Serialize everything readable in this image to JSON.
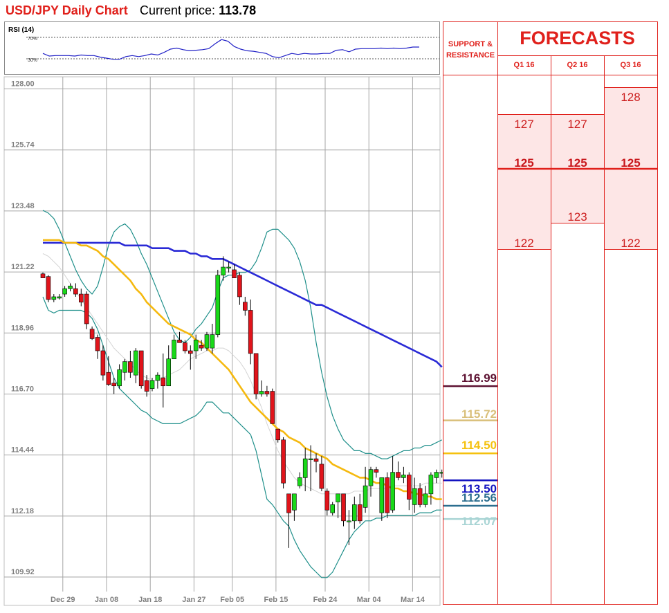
{
  "header": {
    "title": "USD/JPY Daily Chart",
    "price_label": "Current price:",
    "price_value": "113.78"
  },
  "rsi": {
    "label": "RSI (14)",
    "levels": [
      "70%",
      "30%"
    ],
    "values": [
      40,
      35,
      36,
      36,
      36,
      35,
      37,
      36,
      36,
      33,
      31,
      29,
      29,
      34,
      36,
      34,
      36,
      39,
      37,
      42,
      48,
      50,
      47,
      45,
      46,
      47,
      49,
      58,
      66,
      63,
      53,
      48,
      45,
      44,
      42,
      40,
      34,
      32,
      36,
      40,
      38,
      40,
      39,
      39,
      40,
      40,
      46,
      47,
      43,
      48,
      49,
      49,
      49,
      50,
      49,
      50,
      49,
      50,
      52,
      52
    ],
    "ylim": [
      0,
      100
    ],
    "color": "#1f1fc6"
  },
  "chart_data": {
    "type": "candlestick",
    "title": "USD/JPY Daily Chart",
    "ylim": [
      109.92,
      128.0
    ],
    "yticks": [
      "128.00",
      "125.74",
      "123.48",
      "121.22",
      "118.96",
      "116.70",
      "114.44",
      "112.18",
      "109.92"
    ],
    "xticks": [
      {
        "label": "Dec 29",
        "index": 2
      },
      {
        "label": "Jan 08",
        "index": 10
      },
      {
        "label": "Jan 18",
        "index": 18
      },
      {
        "label": "Jan 27",
        "index": 26
      },
      {
        "label": "Feb 05",
        "index": 33
      },
      {
        "label": "Feb 15",
        "index": 41
      },
      {
        "label": "Feb 24",
        "index": 50
      },
      {
        "label": "Mar 04",
        "index": 58
      },
      {
        "label": "Mar 14",
        "index": 66
      }
    ],
    "candles": [
      [
        121.15,
        121.2,
        121.1,
        121.0
      ],
      [
        121.05,
        121.1,
        120.1,
        120.2
      ],
      [
        120.2,
        120.4,
        120.1,
        120.3
      ],
      [
        120.25,
        120.4,
        120.2,
        120.3
      ],
      [
        120.4,
        120.7,
        120.3,
        120.6
      ],
      [
        120.6,
        120.8,
        120.5,
        120.7
      ],
      [
        120.6,
        120.8,
        120.3,
        120.4
      ],
      [
        120.4,
        120.6,
        119.95,
        120.1
      ],
      [
        120.4,
        120.5,
        119.1,
        119.3
      ],
      [
        119.1,
        119.2,
        118.7,
        118.75
      ],
      [
        118.8,
        118.9,
        118.0,
        118.3
      ],
      [
        118.3,
        118.5,
        117.2,
        117.4
      ],
      [
        117.5,
        118.1,
        117.0,
        117.05
      ],
      [
        117.1,
        117.3,
        116.7,
        117.0
      ],
      [
        117.0,
        117.8,
        116.9,
        117.6
      ],
      [
        117.5,
        118.0,
        117.2,
        117.9
      ],
      [
        117.9,
        118.3,
        117.3,
        117.5
      ],
      [
        117.4,
        118.4,
        117.1,
        118.3
      ],
      [
        118.3,
        118.3,
        116.9,
        117.0
      ],
      [
        117.2,
        117.4,
        116.6,
        116.8
      ],
      [
        116.9,
        117.3,
        116.8,
        117.2
      ],
      [
        117.2,
        117.5,
        116.9,
        117.4
      ],
      [
        117.3,
        118.2,
        116.2,
        117.0
      ],
      [
        117.0,
        118.5,
        117.0,
        118.0
      ],
      [
        118.0,
        118.9,
        118.0,
        118.7
      ],
      [
        118.7,
        119.0,
        118.6,
        118.6
      ],
      [
        118.6,
        118.7,
        118.2,
        118.3
      ],
      [
        118.3,
        118.5,
        117.6,
        118.2
      ],
      [
        118.3,
        118.9,
        118.0,
        118.7
      ],
      [
        118.5,
        118.7,
        118.3,
        118.4
      ],
      [
        118.4,
        119.0,
        118.3,
        118.9
      ],
      [
        118.4,
        119.3,
        118.2,
        118.9
      ],
      [
        118.9,
        121.3,
        118.8,
        121.1
      ],
      [
        121.1,
        121.8,
        120.9,
        121.4
      ],
      [
        121.4,
        121.6,
        121.2,
        121.4
      ],
      [
        121.3,
        121.5,
        121.0,
        121.0
      ],
      [
        121.1,
        121.2,
        120.0,
        120.3
      ],
      [
        120.1,
        120.3,
        119.6,
        119.8
      ],
      [
        119.8,
        120.2,
        117.8,
        118.2
      ],
      [
        118.2,
        118.2,
        116.5,
        116.7
      ],
      [
        116.7,
        117.2,
        116.6,
        116.8
      ],
      [
        116.8,
        117.0,
        116.6,
        116.7
      ],
      [
        116.8,
        116.9,
        115.6,
        115.6
      ],
      [
        115.4,
        115.4,
        114.9,
        115.0
      ],
      [
        115.0,
        115.1,
        113.2,
        113.4
      ],
      [
        113.0,
        113.0,
        111.0,
        112.3
      ],
      [
        112.4,
        113.0,
        112.0,
        113.0
      ],
      [
        113.3,
        113.8,
        113.2,
        113.6
      ],
      [
        113.6,
        114.7,
        113.1,
        114.3
      ],
      [
        114.3,
        114.8,
        113.1,
        114.3
      ],
      [
        114.3,
        114.5,
        113.8,
        114.2
      ],
      [
        114.1,
        114.4,
        113.1,
        113.2
      ],
      [
        113.1,
        113.2,
        112.2,
        112.4
      ],
      [
        112.3,
        112.7,
        112.2,
        112.6
      ],
      [
        112.7,
        112.9,
        112.1,
        113.0
      ],
      [
        113.0,
        113.0,
        111.8,
        112.0
      ],
      [
        112.0,
        112.4,
        111.1,
        112.0
      ],
      [
        112.0,
        112.9,
        111.7,
        112.6
      ],
      [
        112.6,
        113.0,
        111.9,
        112.0
      ],
      [
        112.5,
        114.0,
        112.3,
        113.3
      ],
      [
        113.3,
        114.0,
        112.9,
        113.9
      ],
      [
        113.9,
        114.0,
        113.6,
        113.8
      ],
      [
        112.3,
        113.6,
        112.0,
        113.6
      ],
      [
        113.6,
        113.8,
        112.1,
        112.3
      ],
      [
        112.4,
        114.4,
        112.3,
        113.8
      ],
      [
        113.8,
        114.2,
        113.5,
        113.6
      ],
      [
        113.6,
        114.0,
        113.4,
        113.7
      ],
      [
        113.7,
        113.8,
        112.4,
        112.8
      ],
      [
        112.6,
        113.6,
        112.3,
        113.2
      ],
      [
        113.2,
        113.4,
        112.5,
        112.6
      ],
      [
        112.6,
        113.3,
        112.5,
        113.0
      ],
      [
        113.0,
        113.8,
        112.6,
        113.7
      ],
      [
        113.6,
        113.9,
        113.4,
        113.8
      ],
      [
        113.8,
        113.9,
        113.6,
        113.8
      ]
    ],
    "lines": [
      {
        "name": "upper-band",
        "color": "#1e8f8a",
        "width": 1.2,
        "values": [
          123.5,
          123.4,
          123.2,
          122.8,
          122.3,
          121.8,
          121.3,
          120.9,
          120.6,
          120.4,
          120.7,
          121.4,
          122.2,
          122.7,
          122.9,
          123.0,
          122.8,
          122.4,
          121.9,
          121.5,
          121.0,
          120.5,
          120.0,
          119.5,
          119.0,
          118.7,
          118.6,
          118.8,
          119.1,
          119.3,
          119.6,
          119.9,
          120.5,
          121.0,
          121.1,
          121.1,
          121.2,
          121.2,
          121.3,
          121.6,
          122.1,
          122.7,
          122.8,
          122.8,
          122.6,
          122.4,
          122.1,
          121.6,
          120.9,
          119.9,
          118.6,
          117.5,
          116.6,
          115.9,
          115.4,
          115.0,
          114.8,
          114.6,
          114.6,
          114.5,
          114.5,
          114.4,
          114.3,
          114.3,
          114.4,
          114.5,
          114.6,
          114.6,
          114.7,
          114.7,
          114.8,
          114.8,
          114.9,
          115.0
        ]
      },
      {
        "name": "lower-band",
        "color": "#1e8f8a",
        "width": 1.2,
        "values": [
          120.3,
          119.8,
          119.7,
          119.8,
          119.8,
          119.8,
          119.8,
          119.8,
          119.7,
          119.5,
          119.1,
          118.5,
          117.9,
          117.3,
          116.9,
          116.7,
          116.5,
          116.3,
          116.1,
          116.0,
          115.8,
          115.7,
          115.6,
          115.6,
          115.6,
          115.6,
          115.7,
          115.8,
          115.9,
          116.1,
          116.4,
          116.4,
          116.2,
          116.0,
          116.0,
          115.8,
          115.6,
          115.4,
          115.2,
          114.6,
          113.7,
          112.8,
          112.6,
          112.3,
          112.0,
          111.8,
          111.3,
          110.9,
          110.6,
          110.3,
          110.1,
          109.9,
          109.9,
          110.1,
          110.5,
          110.9,
          111.3,
          111.6,
          111.8,
          112.0,
          112.0,
          112.1,
          112.1,
          112.2,
          112.2,
          112.2,
          112.2,
          112.2,
          112.2,
          112.3,
          112.3,
          112.3,
          112.4,
          112.4
        ]
      },
      {
        "name": "mid-band",
        "color": "#d3d3d3",
        "width": 1.0,
        "values": [
          121.9,
          121.8,
          121.6,
          121.4,
          121.1,
          120.8,
          120.5,
          120.2,
          119.9,
          119.6,
          119.3,
          119.0,
          118.7,
          118.4,
          118.2,
          118.0,
          117.8,
          117.6,
          117.4,
          117.3,
          117.2,
          117.2,
          117.3,
          117.4,
          117.5,
          117.6,
          117.8,
          118.0,
          118.1,
          118.2,
          118.3,
          118.3,
          118.4,
          118.4,
          118.3,
          118.1,
          117.9,
          117.6,
          117.2,
          116.7,
          116.2,
          115.6,
          115.1,
          114.6,
          114.2,
          113.9,
          113.6,
          113.4,
          113.3,
          113.2,
          113.1,
          113.0,
          113.0,
          113.0,
          113.0,
          113.0,
          113.0,
          113.1,
          113.1,
          113.1,
          113.2,
          113.2,
          113.2,
          113.2,
          113.3,
          113.3,
          113.3,
          113.3,
          113.3,
          113.3,
          113.4,
          113.4,
          113.4,
          113.4
        ]
      },
      {
        "name": "sma-blue",
        "color": "#2a2ad6",
        "width": 2.6,
        "values": [
          122.3,
          122.3,
          122.3,
          122.3,
          122.3,
          122.3,
          122.3,
          122.3,
          122.3,
          122.3,
          122.3,
          122.3,
          122.3,
          122.3,
          122.3,
          122.2,
          122.2,
          122.2,
          122.2,
          122.2,
          122.1,
          122.1,
          122.1,
          122.1,
          122.0,
          122.0,
          122.0,
          121.9,
          121.9,
          121.8,
          121.8,
          121.7,
          121.7,
          121.7,
          121.6,
          121.5,
          121.4,
          121.3,
          121.2,
          121.1,
          121.0,
          120.9,
          120.8,
          120.7,
          120.6,
          120.5,
          120.4,
          120.3,
          120.2,
          120.1,
          120.0,
          120.0,
          119.9,
          119.8,
          119.7,
          119.6,
          119.5,
          119.4,
          119.3,
          119.2,
          119.1,
          119.0,
          118.9,
          118.8,
          118.7,
          118.6,
          118.5,
          118.4,
          118.3,
          118.2,
          118.1,
          118.0,
          117.9,
          117.7
        ]
      },
      {
        "name": "sma-yellow",
        "color": "#f5b90f",
        "width": 2.6,
        "values": [
          122.4,
          122.4,
          122.4,
          122.4,
          122.3,
          122.3,
          122.3,
          122.2,
          122.2,
          122.1,
          122.0,
          121.8,
          121.7,
          121.5,
          121.3,
          121.1,
          120.9,
          120.6,
          120.4,
          120.1,
          119.9,
          119.7,
          119.5,
          119.3,
          119.2,
          119.1,
          119.0,
          118.9,
          118.7,
          118.6,
          118.4,
          118.2,
          118.0,
          117.8,
          117.6,
          117.3,
          117.0,
          116.7,
          116.4,
          116.2,
          116.0,
          115.8,
          115.6,
          115.4,
          115.3,
          115.1,
          115.0,
          114.9,
          114.7,
          114.6,
          114.5,
          114.4,
          114.3,
          114.1,
          114.0,
          113.9,
          113.8,
          113.7,
          113.6,
          113.6,
          113.5,
          113.4,
          113.4,
          113.3,
          113.2,
          113.2,
          113.1,
          113.1,
          113.0,
          113.0,
          112.9,
          112.9,
          112.8,
          112.8
        ]
      }
    ],
    "support_resistance": [
      {
        "label": "116.99",
        "value": 116.99,
        "color": "#5c1030"
      },
      {
        "label": "115.72",
        "value": 115.72,
        "color": "#d9bf7a"
      },
      {
        "label": "114.50",
        "value": 114.5,
        "color": "#f5c10f"
      },
      {
        "label": "113.50",
        "value": 113.5,
        "color": "#1414c0"
      },
      {
        "label": "112.56",
        "value": 112.56,
        "color": "#2b6e8f"
      },
      {
        "label": "112.07",
        "value": 112.07,
        "color": "#a8d4d4"
      }
    ],
    "bull_color": "#19d919",
    "bear_color": "#e0141b"
  },
  "forecasts": {
    "title": "FORECASTS",
    "sr_title_line1": "SUPPORT &",
    "sr_title_line2": "RESISTANCE",
    "quarters": [
      "Q1 16",
      "Q2 16",
      "Q3 16"
    ],
    "values": {
      "q1": {
        "high": "127",
        "mid": "125",
        "low": "122"
      },
      "q2": {
        "high": "127",
        "mid": "125",
        "low": "123"
      },
      "q3": {
        "high": "128",
        "mid": "125",
        "low": "122"
      }
    },
    "band_color": "#fde6e6",
    "accent": "#e0201b"
  }
}
